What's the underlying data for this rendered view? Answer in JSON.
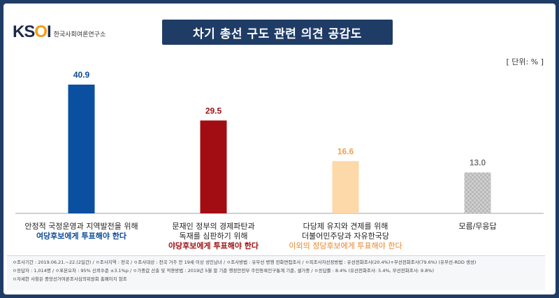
{
  "header": {
    "logo_mark": "KSOI",
    "logo_subtitle": "한국사회여론연구소",
    "title": "차기 총선 구도 관련 의견 공감도",
    "unit": "[ 단위: % ]"
  },
  "chart_data": {
    "type": "bar",
    "title": "차기 총선 구도 관련 의견 공감도",
    "ylim": [
      0,
      50
    ],
    "grid": false,
    "categories": [
      {
        "lines": [
          "안정적 국정운영과 지역발전을 위해"
        ],
        "highlight": "여당후보에게 투표해야 한다",
        "highlight_color": "#0b4a96"
      },
      {
        "lines": [
          "문재인 정부의 경제파탄과",
          "독재를 심판하기 위해"
        ],
        "highlight": "야당후보에게 투표해야 한다",
        "highlight_color": "#9b1012"
      },
      {
        "lines": [
          "다당제 유지와 견제를 위해",
          "더불어민주당과 자유한국당"
        ],
        "highlight": "이외의 정당후보에게 투표해야 한다",
        "highlight_color": "#e8842a"
      },
      {
        "lines": [
          "모름/무응답"
        ],
        "highlight": "",
        "highlight_color": "#333333"
      }
    ],
    "values": [
      40.9,
      29.5,
      16.6,
      13.0
    ],
    "value_labels": [
      "40.9",
      "29.5",
      "16.6",
      "13.0"
    ],
    "colors": [
      "#0b4fa0",
      "#a10d12",
      "#fdd8a8",
      "#c8c8c8"
    ],
    "label_colors": [
      "#0b4a96",
      "#9b1012",
      "#f0a050",
      "#777777"
    ]
  },
  "footer": {
    "line1": "ㅇ조사기간 : 2019.06.21.~22.(2일간) / ㅇ조사지역 : 전국 / ㅇ조사대상 : 전국 거주 만 19세 이상 성인남녀 / ㅇ조사방법 : 유무선 병행 전화면접조사 / ㅇ피조사자선정방법 : 유선전화조사(20.4%)+무선전화조사(79.6%) (유무선-RDD 생성)",
    "line2": "ㅇ응답자 : 1,014명 / ㅇ표본오차 : 95% 신뢰수준 ±3.1%p / ㅇ가중값 산출 및 적용방법 : 2019년 5월 말 기준 행정안전부 주민등록인구통계 기준, 셀가중 / ㅇ응답률 : 8.4% (유선전화조사: 5.4%, 무선전화조사: 9.8%)",
    "line3": "ㅇ자세한 사항은 중앙선거여론조사심의위원회 홈페이지 참조"
  }
}
